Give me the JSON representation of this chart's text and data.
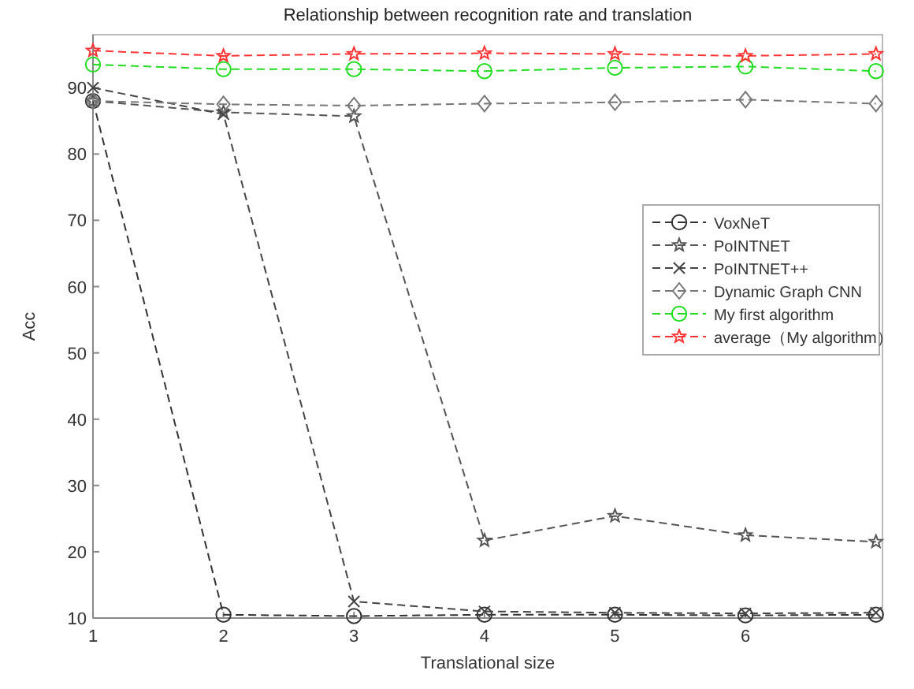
{
  "chart_data": {
    "type": "line",
    "title": "Relationship between recognition rate and translation",
    "xlabel": "Translational size",
    "ylabel": "Acc",
    "x": [
      1,
      2,
      3,
      4,
      5,
      6,
      7
    ],
    "xlim": [
      1,
      7.05
    ],
    "xticks": [
      1,
      2,
      3,
      4,
      5,
      6
    ],
    "ylim": [
      10,
      98
    ],
    "yticks": [
      10,
      20,
      30,
      40,
      50,
      60,
      70,
      80,
      90
    ],
    "grid": false,
    "legend": "center right",
    "line_style": "dashed",
    "series": [
      {
        "name": "VoxNeT",
        "color": "#333333",
        "marker": "circle",
        "values": [
          88,
          10.5,
          10.3,
          10.5,
          10.5,
          10.4,
          10.5
        ]
      },
      {
        "name": "PoINTNET",
        "color": "#555555",
        "marker": "star",
        "values": [
          88,
          86.3,
          85.7,
          21.7,
          25.4,
          22.5,
          21.5
        ]
      },
      {
        "name": "PoINTNET++",
        "color": "#444444",
        "marker": "cross",
        "values": [
          90,
          86,
          12.5,
          11,
          10.8,
          10.7,
          10.8
        ]
      },
      {
        "name": "Dynamic Graph CNN",
        "color": "#777777",
        "marker": "diamond",
        "values": [
          88,
          87.5,
          87.3,
          87.6,
          87.8,
          88.2,
          87.6
        ]
      },
      {
        "name": "My first algorithm",
        "color": "#22dd22",
        "marker": "circle",
        "values": [
          93.5,
          92.8,
          92.8,
          92.5,
          93,
          93.2,
          92.5
        ]
      },
      {
        "name": "average（My algorithm）",
        "color": "#ff3333",
        "marker": "star",
        "values": [
          95.6,
          94.8,
          95.1,
          95.2,
          95.1,
          94.8,
          95.1
        ]
      }
    ]
  }
}
